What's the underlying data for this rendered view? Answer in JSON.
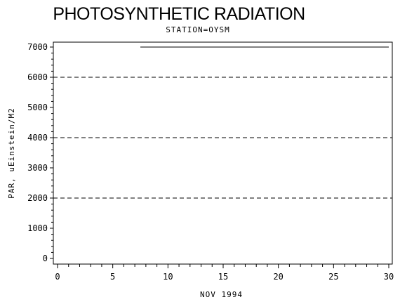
{
  "chart_data": {
    "type": "line",
    "title": "PHOTOSYNTHETIC RADIATION",
    "subtitle": "STATION=OYSM",
    "xlabel": "NOV 1994",
    "ylabel": "PAR, uEinstein/M2",
    "xlim": [
      0,
      30
    ],
    "ylim": [
      0,
      7000
    ],
    "x_ticks": [
      0,
      5,
      10,
      15,
      20,
      25,
      30
    ],
    "y_ticks": [
      0,
      1000,
      2000,
      3000,
      4000,
      5000,
      6000,
      7000
    ],
    "grid_lines_y": [
      2000,
      4000,
      6000
    ],
    "series": [
      {
        "x": [
          7.5,
          30
        ],
        "values": [
          7000,
          7000
        ]
      }
    ]
  }
}
